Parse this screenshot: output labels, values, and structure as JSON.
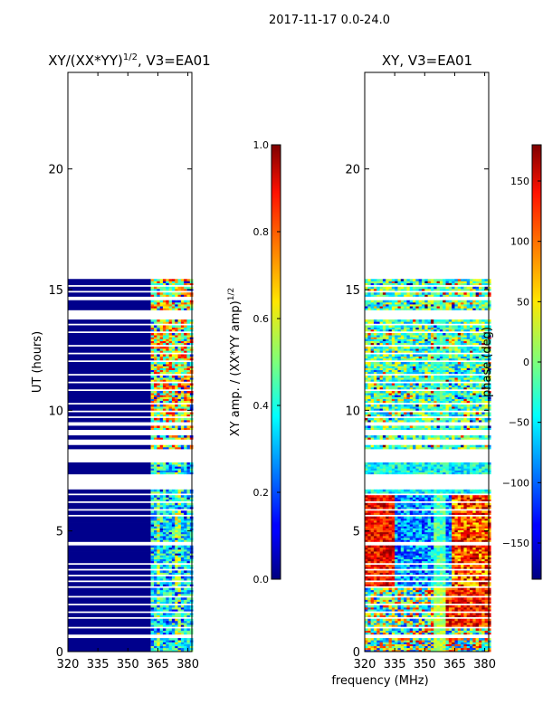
{
  "suptitle": "2017-11-17 0.0-24.0",
  "chart_data": [
    {
      "type": "heatmap",
      "title_main": "XY/(XX*YY)",
      "title_exp": "1/2",
      "title_suffix": ", V3=EA01",
      "xlabel": "",
      "ylabel": "UT (hours)",
      "xlim": [
        320,
        382
      ],
      "ylim": [
        0,
        24
      ],
      "xticks": [
        "320",
        "335",
        "350",
        "365",
        "380"
      ],
      "xtick_values": [
        320,
        335,
        350,
        365,
        380
      ],
      "yticks": [
        "0",
        "5",
        "10",
        "15",
        "20"
      ],
      "ytick_values": [
        0,
        5,
        10,
        15,
        20
      ],
      "data_ut_range": [
        0,
        15.4
      ],
      "colorbar": {
        "label_main": "XY amp. / (XX*YY amp)",
        "label_exp": "1/2",
        "range": [
          0.0,
          1.0
        ],
        "ticks": [
          "0.0",
          "0.2",
          "0.4",
          "0.6",
          "0.8",
          "1.0"
        ],
        "tick_values": [
          0.0,
          0.2,
          0.4,
          0.6,
          0.8,
          1.0
        ],
        "colormap": "jet"
      }
    },
    {
      "type": "heatmap",
      "title": "XY, V3=EA01",
      "xlabel": "frequency (MHz)",
      "ylabel": "",
      "xlim": [
        320,
        382
      ],
      "ylim": [
        0,
        24
      ],
      "xticks": [
        "320",
        "335",
        "350",
        "365",
        "380"
      ],
      "xtick_values": [
        320,
        335,
        350,
        365,
        380
      ],
      "yticks": [
        "0",
        "5",
        "10",
        "15",
        "20"
      ],
      "ytick_values": [
        0,
        5,
        10,
        15,
        20
      ],
      "data_ut_range": [
        0,
        15.4
      ],
      "colorbar": {
        "label": "phase (deg)",
        "range": [
          -180,
          180
        ],
        "ticks": [
          "−150",
          "−100",
          "−50",
          "0",
          "50",
          "100",
          "150"
        ],
        "tick_values": [
          -150,
          -100,
          -50,
          0,
          50,
          100,
          150
        ],
        "colormap": "jet"
      }
    }
  ]
}
